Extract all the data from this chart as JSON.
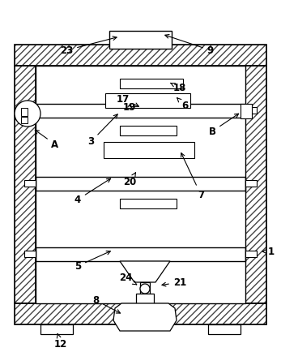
{
  "fig_width": 3.47,
  "fig_height": 4.34,
  "bg_color": "#ffffff",
  "line_color": "#000000",
  "hatch_pattern": "////",
  "hatch_lw": 0.4,
  "outer_lw": 1.2,
  "inner_lw": 0.9,
  "shelf_lw": 1.0,
  "tray_lw": 0.8
}
